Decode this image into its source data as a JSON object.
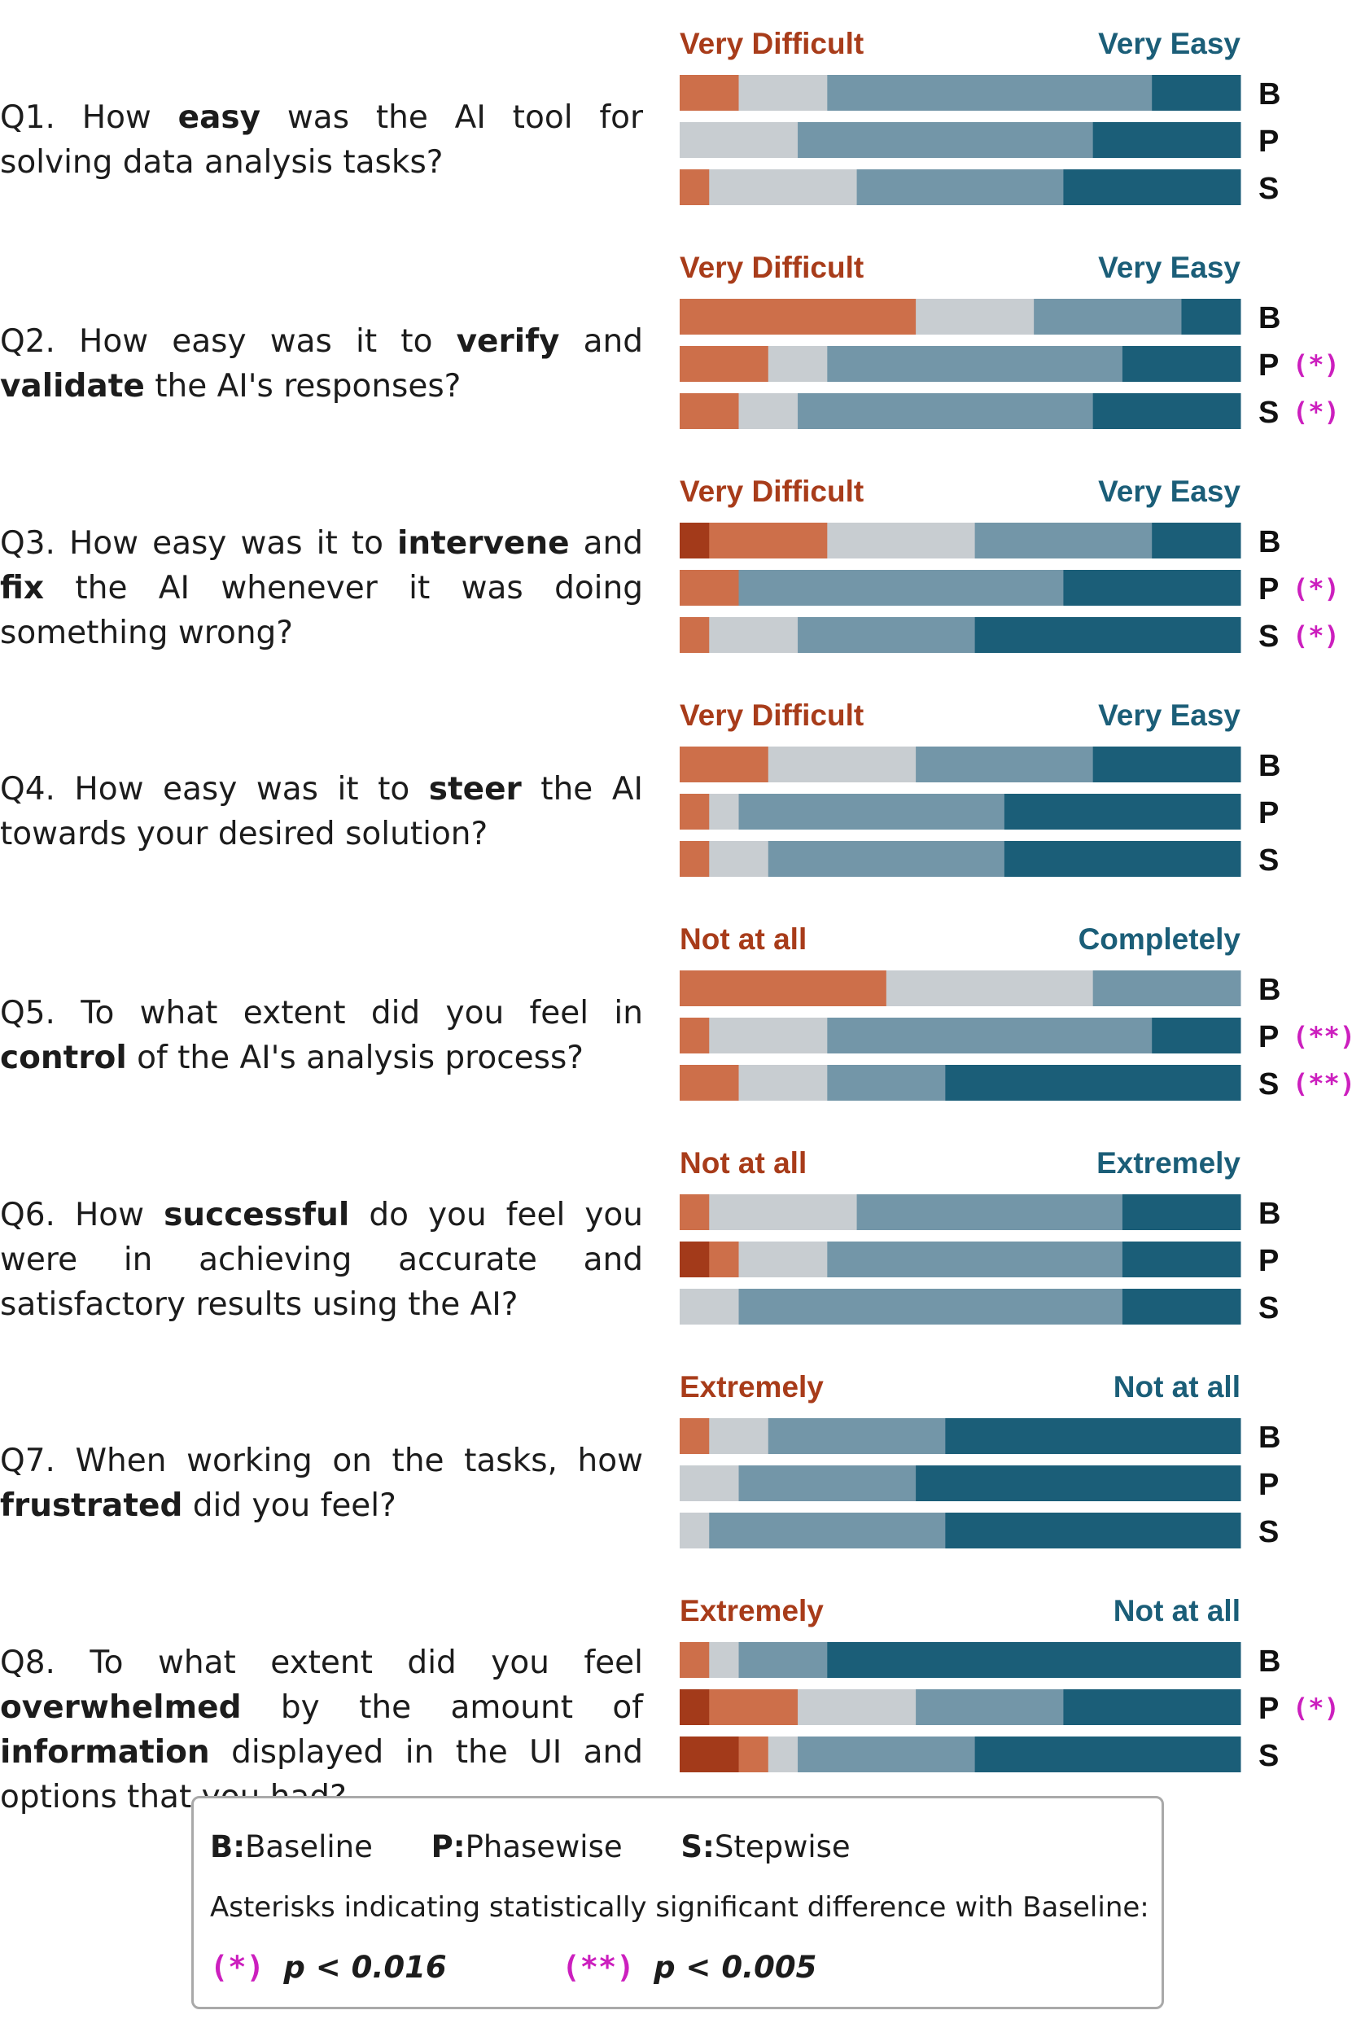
{
  "colors": {
    "dark_orange": "#a33a1a",
    "orange": "#cd6f4a",
    "light_gray": "#c8cdd1",
    "steel": "#7396a8",
    "dark_teal": "#1b5e78",
    "neg_label": "#a83c1a",
    "pos_label": "#1b5e78",
    "significance": "#cc1fbe"
  },
  "questions": [
    {
      "id": "Q1",
      "text_parts": [
        {
          "t": "Q1. How "
        },
        {
          "t": "easy",
          "b": true
        },
        {
          "t": " was the AI tool for solving data analysis tasks?"
        }
      ]
    },
    {
      "id": "Q2",
      "text_parts": [
        {
          "t": "Q2. How easy was it to "
        },
        {
          "t": "verify",
          "b": true
        },
        {
          "t": " and "
        },
        {
          "t": "validate",
          "b": true
        },
        {
          "t": " the AI's responses?"
        }
      ]
    },
    {
      "id": "Q3",
      "text_parts": [
        {
          "t": "Q3. How easy was it to "
        },
        {
          "t": "intervene",
          "b": true
        },
        {
          "t": " and "
        },
        {
          "t": "fix",
          "b": true
        },
        {
          "t": " the AI whenever it was doing something wrong?"
        }
      ]
    },
    {
      "id": "Q4",
      "text_parts": [
        {
          "t": "Q4. How easy was it to "
        },
        {
          "t": "steer",
          "b": true
        },
        {
          "t": " the AI towards your desired solution?"
        }
      ]
    },
    {
      "id": "Q5",
      "text_parts": [
        {
          "t": "Q5. To what extent did you feel in "
        },
        {
          "t": "control",
          "b": true
        },
        {
          "t": " of the AI's analysis process?"
        }
      ]
    },
    {
      "id": "Q6",
      "text_parts": [
        {
          "t": "Q6. How "
        },
        {
          "t": "successful",
          "b": true
        },
        {
          "t": " do you feel you were in achieving accurate and satisfactory results using the AI?"
        }
      ]
    },
    {
      "id": "Q7",
      "text_parts": [
        {
          "t": "Q7. When working on the tasks, how "
        },
        {
          "t": "frustrated",
          "b": true
        },
        {
          "t": " did you feel?"
        }
      ]
    },
    {
      "id": "Q8",
      "text_parts": [
        {
          "t": "Q8. To what extent did you feel "
        },
        {
          "t": "overwhelmed",
          "b": true
        },
        {
          "t": " by the amount of "
        },
        {
          "t": "information",
          "b": true
        },
        {
          "t": " displayed in the UI and options that you had?"
        }
      ]
    }
  ],
  "chart_data": {
    "type": "bar",
    "stacked": true,
    "orientation": "horizontal",
    "scale": "likert-5",
    "unit": "participants",
    "total_per_bar": 19,
    "segment_order": [
      "dark_orange",
      "orange",
      "light_gray",
      "steel",
      "dark_teal"
    ],
    "conditions": [
      "B",
      "P",
      "S"
    ],
    "groups": [
      {
        "question": "Q1",
        "left_label": "Very Difficult",
        "right_label": "Very Easy",
        "bars": [
          {
            "cond": "B",
            "values": [
              0,
              2,
              3,
              11,
              3
            ],
            "sig": ""
          },
          {
            "cond": "P",
            "values": [
              0,
              0,
              4,
              10,
              5
            ],
            "sig": ""
          },
          {
            "cond": "S",
            "values": [
              0,
              1,
              5,
              7,
              6
            ],
            "sig": ""
          }
        ]
      },
      {
        "question": "Q2",
        "left_label": "Very Difficult",
        "right_label": "Very Easy",
        "bars": [
          {
            "cond": "B",
            "values": [
              0,
              8,
              4,
              5,
              2
            ],
            "sig": ""
          },
          {
            "cond": "P",
            "values": [
              0,
              3,
              2,
              10,
              4
            ],
            "sig": "(*)"
          },
          {
            "cond": "S",
            "values": [
              0,
              2,
              2,
              10,
              5
            ],
            "sig": "(*)"
          }
        ]
      },
      {
        "question": "Q3",
        "left_label": "Very Difficult",
        "right_label": "Very Easy",
        "bars": [
          {
            "cond": "B",
            "values": [
              1,
              4,
              5,
              6,
              3
            ],
            "sig": ""
          },
          {
            "cond": "P",
            "values": [
              0,
              2,
              0,
              11,
              6
            ],
            "sig": "(*)"
          },
          {
            "cond": "S",
            "values": [
              0,
              1,
              3,
              6,
              9
            ],
            "sig": "(*)"
          }
        ]
      },
      {
        "question": "Q4",
        "left_label": "Very Difficult",
        "right_label": "Very Easy",
        "bars": [
          {
            "cond": "B",
            "values": [
              0,
              3,
              5,
              6,
              5
            ],
            "sig": ""
          },
          {
            "cond": "P",
            "values": [
              0,
              1,
              1,
              9,
              8
            ],
            "sig": ""
          },
          {
            "cond": "S",
            "values": [
              0,
              1,
              2,
              8,
              8
            ],
            "sig": ""
          }
        ]
      },
      {
        "question": "Q5",
        "left_label": "Not at all",
        "right_label": "Completely",
        "bars": [
          {
            "cond": "B",
            "values": [
              0,
              7,
              7,
              5,
              0
            ],
            "sig": ""
          },
          {
            "cond": "P",
            "values": [
              0,
              1,
              4,
              11,
              3
            ],
            "sig": "(**)"
          },
          {
            "cond": "S",
            "values": [
              0,
              2,
              3,
              4,
              10
            ],
            "sig": "(**)"
          }
        ]
      },
      {
        "question": "Q6",
        "left_label": "Not at all",
        "right_label": "Extremely",
        "bars": [
          {
            "cond": "B",
            "values": [
              0,
              1,
              5,
              9,
              4
            ],
            "sig": ""
          },
          {
            "cond": "P",
            "values": [
              1,
              1,
              3,
              10,
              4
            ],
            "sig": ""
          },
          {
            "cond": "S",
            "values": [
              0,
              0,
              2,
              13,
              4
            ],
            "sig": ""
          }
        ]
      },
      {
        "question": "Q7",
        "left_label": "Extremely",
        "right_label": "Not at all",
        "bars": [
          {
            "cond": "B",
            "values": [
              0,
              1,
              2,
              6,
              10
            ],
            "sig": ""
          },
          {
            "cond": "P",
            "values": [
              0,
              0,
              2,
              6,
              11
            ],
            "sig": ""
          },
          {
            "cond": "S",
            "values": [
              0,
              0,
              1,
              8,
              10
            ],
            "sig": ""
          }
        ]
      },
      {
        "question": "Q8",
        "left_label": "Extremely",
        "right_label": "Not at all",
        "bars": [
          {
            "cond": "B",
            "values": [
              0,
              1,
              1,
              3,
              14
            ],
            "sig": ""
          },
          {
            "cond": "P",
            "values": [
              1,
              3,
              4,
              5,
              6
            ],
            "sig": "(*)"
          },
          {
            "cond": "S",
            "values": [
              2,
              1,
              1,
              6,
              9
            ],
            "sig": ""
          }
        ]
      }
    ]
  },
  "legend": {
    "conditions": [
      {
        "key": "B:",
        "name": "Baseline"
      },
      {
        "key": "P:",
        "name": "Phasewise"
      },
      {
        "key": "S:",
        "name": "Stepwise"
      }
    ],
    "asterisk_note": "Asterisks indicating statistically significant difference with Baseline:",
    "sig_levels": [
      {
        "mark": "(*)",
        "p": "p < 0.016"
      },
      {
        "mark": "(**)",
        "p": "p < 0.005"
      }
    ]
  }
}
